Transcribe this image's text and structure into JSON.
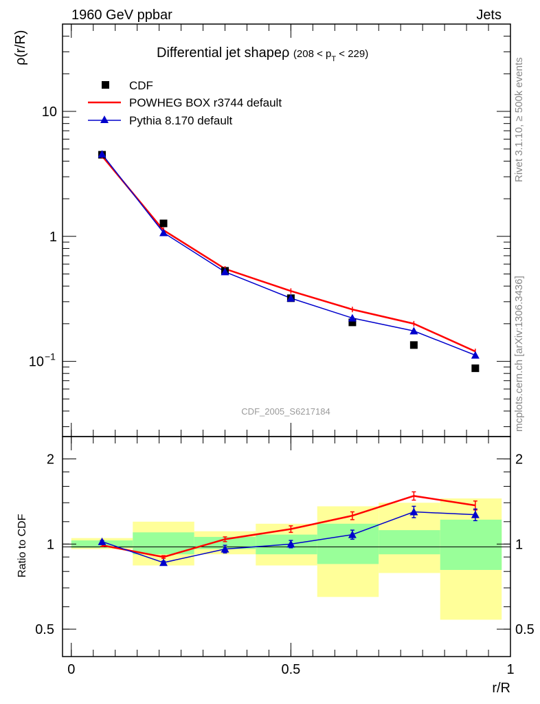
{
  "header": {
    "left": "1960 GeV ppbar",
    "right": "Jets"
  },
  "side_labels": {
    "rivet": "Rivet 3.1.10, ≥ 500k events",
    "mcplots": "mcplots.cern.ch [arXiv:1306.3436]"
  },
  "chart_data": [
    {
      "type": "scatter",
      "title": "Differential jet shapeρ",
      "title_suffix": "(208 < p",
      "title_sub": "T",
      "title_end": " < 229)",
      "ylabel": "ρ(r/R)",
      "yscale": "log",
      "ylim": [
        0.025,
        50
      ],
      "xlim": [
        -0.02,
        1.0
      ],
      "yticks": [
        {
          "v": 10,
          "label": "10"
        },
        {
          "v": 1,
          "label": "1"
        },
        {
          "v": 0.1,
          "label": "10",
          "sup": "−1"
        }
      ],
      "watermark": "CDF_2005_S6217184",
      "legend_position": "top-left",
      "x": [
        0.07,
        0.21,
        0.35,
        0.5,
        0.64,
        0.78,
        0.92
      ],
      "series": [
        {
          "name": "CDF",
          "color": "#000000",
          "marker": "square",
          "values": [
            4.5,
            1.27,
            0.53,
            0.32,
            0.205,
            0.135,
            0.088
          ]
        },
        {
          "name": "POWHEG BOX r3744 default",
          "color": "#ff0000",
          "marker": "line",
          "values": [
            4.4,
            1.12,
            0.55,
            0.365,
            0.26,
            0.2,
            0.12
          ]
        },
        {
          "name": "Pythia 8.170 default",
          "color": "#0000cc",
          "marker": "triangle",
          "values": [
            4.55,
            1.07,
            0.52,
            0.32,
            0.222,
            0.175,
            0.112
          ]
        }
      ]
    },
    {
      "type": "line",
      "ylabel": "Ratio to CDF",
      "xlabel": "r/R",
      "yscale": "log",
      "ylim": [
        0.4,
        2.4
      ],
      "xlim": [
        -0.02,
        1.0
      ],
      "yticks": [
        {
          "v": 2,
          "label": "2"
        },
        {
          "v": 1,
          "label": "1"
        },
        {
          "v": 0.5,
          "label": "0.5"
        }
      ],
      "xticks": [
        {
          "v": 0,
          "label": "0"
        },
        {
          "v": 0.5,
          "label": "0.5"
        },
        {
          "v": 1,
          "label": "1"
        }
      ],
      "bins": [
        [
          0.0,
          0.14
        ],
        [
          0.14,
          0.28
        ],
        [
          0.28,
          0.42
        ],
        [
          0.42,
          0.56
        ],
        [
          0.56,
          0.7
        ],
        [
          0.7,
          0.84
        ],
        [
          0.84,
          0.98
        ]
      ],
      "yellow_band": [
        [
          0.96,
          1.05
        ],
        [
          0.84,
          1.2
        ],
        [
          0.92,
          1.11
        ],
        [
          0.84,
          1.18
        ],
        [
          0.65,
          1.36
        ],
        [
          0.79,
          1.4
        ],
        [
          0.54,
          1.45
        ]
      ],
      "green_band": [
        [
          0.97,
          1.03
        ],
        [
          0.92,
          1.1
        ],
        [
          0.96,
          1.06
        ],
        [
          0.92,
          1.08
        ],
        [
          0.85,
          1.18
        ],
        [
          0.92,
          1.12
        ],
        [
          0.81,
          1.22
        ]
      ],
      "color_yellow": "#ffff99",
      "color_green": "#99ff99",
      "x": [
        0.07,
        0.21,
        0.35,
        0.5,
        0.64,
        0.78,
        0.92
      ],
      "series": [
        {
          "name": "POWHEG BOX r3744 default",
          "color": "#ff0000",
          "values": [
            0.99,
            0.9,
            1.04,
            1.13,
            1.26,
            1.48,
            1.37
          ],
          "err": [
            0.01,
            0.01,
            0.02,
            0.03,
            0.04,
            0.05,
            0.05
          ]
        },
        {
          "name": "Pythia 8.170 default",
          "color": "#0000cc",
          "values": [
            1.02,
            0.86,
            0.96,
            1.0,
            1.08,
            1.3,
            1.27
          ],
          "err": [
            0.01,
            0.01,
            0.03,
            0.03,
            0.04,
            0.06,
            0.06
          ]
        }
      ]
    }
  ]
}
